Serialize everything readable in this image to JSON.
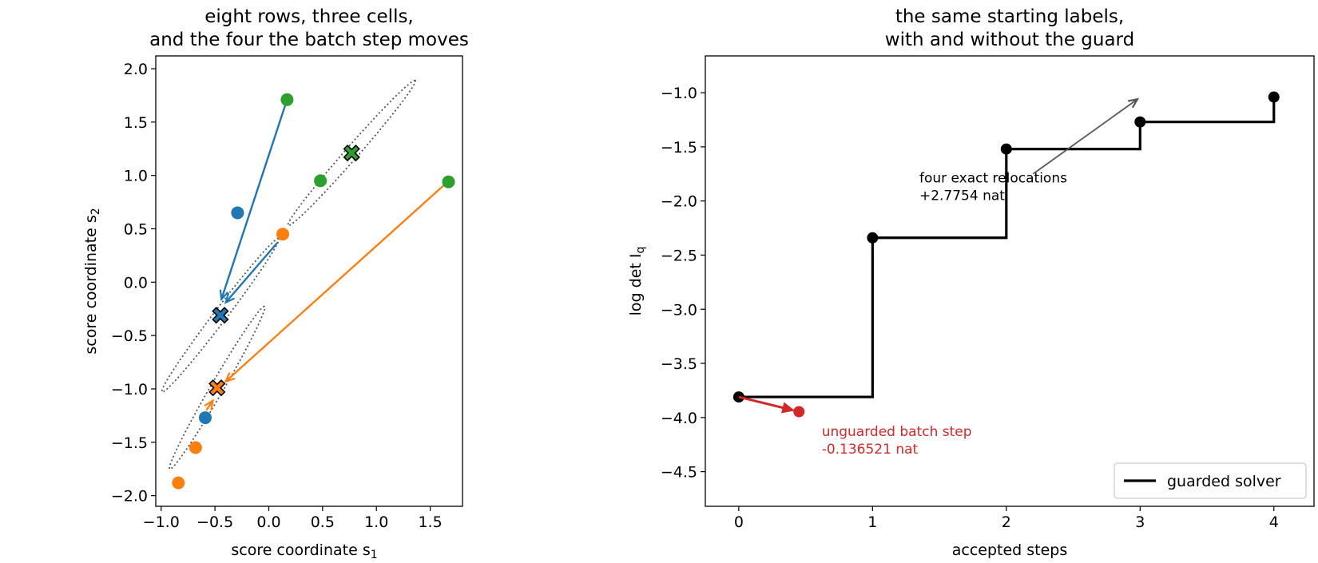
{
  "chart_data": [
    {
      "type": "scatter",
      "title": [
        "eight rows, three cells,",
        "and the four the batch step moves"
      ],
      "xlabel": "score coordinate s",
      "xlabel_sub": "1",
      "ylabel": "score coordinate s",
      "ylabel_sub": "2",
      "xlim": [
        -1.05,
        1.8
      ],
      "ylim": [
        -2.1,
        2.12
      ],
      "xticks": [
        -1.0,
        -0.5,
        0.0,
        0.5,
        1.0,
        1.5
      ],
      "xtick_labels": [
        "−1.0",
        "−0.5",
        "0.0",
        "0.5",
        "1.0",
        "1.5"
      ],
      "yticks": [
        2.0,
        1.5,
        1.0,
        0.5,
        0.0,
        -0.5,
        -1.0,
        -1.5,
        -2.0
      ],
      "ytick_labels": [
        "2.0",
        "1.5",
        "1.0",
        "0.5",
        "0.0",
        "−0.5",
        "−1.0",
        "−1.5",
        "−2.0"
      ],
      "cell_colors": [
        "#1f77b4",
        "#ff7f0e",
        "#2ca02c"
      ],
      "points": [
        {
          "x": -0.29,
          "y": 0.65,
          "cell": 0
        },
        {
          "x": -0.59,
          "y": -1.27,
          "cell": 0
        },
        {
          "x": 0.13,
          "y": 0.45,
          "cell": 1
        },
        {
          "x": -0.68,
          "y": -1.55,
          "cell": 1
        },
        {
          "x": -0.84,
          "y": -1.88,
          "cell": 1
        },
        {
          "x": 0.17,
          "y": 1.71,
          "cell": 2
        },
        {
          "x": 0.48,
          "y": 0.95,
          "cell": 2
        },
        {
          "x": 1.67,
          "y": 0.94,
          "cell": 2
        }
      ],
      "centroids": [
        {
          "x": -0.45,
          "y": -0.31,
          "cell": 0
        },
        {
          "x": -0.48,
          "y": -0.99,
          "cell": 1
        },
        {
          "x": 0.77,
          "y": 1.21,
          "cell": 2
        }
      ],
      "ellipses": [
        {
          "cx": -0.45,
          "cy": -0.31,
          "half_major": 0.9,
          "half_minor": 0.06,
          "angle_deg": 53
        },
        {
          "cx": -0.48,
          "cy": -0.99,
          "half_major": 0.88,
          "half_minor": 0.06,
          "angle_deg": 60
        },
        {
          "cx": 0.77,
          "cy": 1.21,
          "half_major": 0.9,
          "half_minor": 0.06,
          "angle_deg": 49
        }
      ],
      "moves": [
        {
          "from": [
            0.17,
            1.71
          ],
          "to": [
            -0.44,
            -0.16
          ],
          "color": "#1f77b4"
        },
        {
          "from": [
            0.08,
            0.37
          ],
          "to": [
            -0.4,
            -0.19
          ],
          "color": "#1f77b4"
        },
        {
          "from": [
            1.64,
            0.92
          ],
          "to": [
            -0.4,
            -0.93
          ],
          "color": "#ff7f0e"
        },
        {
          "from": [
            -0.58,
            -1.2
          ],
          "to": [
            -0.52,
            -1.11
          ],
          "color": "#ff7f0e"
        }
      ]
    },
    {
      "type": "line",
      "title": [
        "the same starting labels,",
        "with and without the guard"
      ],
      "xlabel": "accepted steps",
      "ylabel": "log det I",
      "ylabel_sub": "q",
      "xlim": [
        -0.25,
        4.3
      ],
      "ylim": [
        -4.82,
        -0.66
      ],
      "xticks": [
        0,
        1,
        2,
        3,
        4
      ],
      "xtick_labels": [
        "0",
        "1",
        "2",
        "3",
        "4"
      ],
      "yticks": [
        -1.0,
        -1.5,
        -2.0,
        -2.5,
        -3.0,
        -3.5,
        -4.0,
        -4.5
      ],
      "ytick_labels": [
        "−1.0",
        "−1.5",
        "−2.0",
        "−2.5",
        "−3.0",
        "−3.5",
        "−4.0",
        "−4.5"
      ],
      "series": [
        {
          "name": "guarded solver",
          "color": "#000000",
          "x": [
            0,
            1,
            2,
            3,
            4
          ],
          "y": [
            -3.81,
            -2.34,
            -1.52,
            -1.27,
            -1.04
          ]
        }
      ],
      "unguarded_step": {
        "from": [
          0,
          -3.81
        ],
        "to": [
          0.45,
          -3.946
        ],
        "color": "#d62728"
      },
      "annotations": [
        {
          "lines": [
            "four exact relocations",
            "+2.7754 nat"
          ],
          "x": 1.35,
          "y": -1.83,
          "color": "#000000",
          "arrow_from": [
            2.2,
            -1.75
          ],
          "arrow_to": [
            2.98,
            -1.06
          ]
        },
        {
          "lines": [
            "unguarded batch step",
            "-0.136521 nat"
          ],
          "x": 0.62,
          "y": -4.17,
          "color": "#d62728"
        }
      ],
      "legend_position": "lower-right"
    }
  ]
}
